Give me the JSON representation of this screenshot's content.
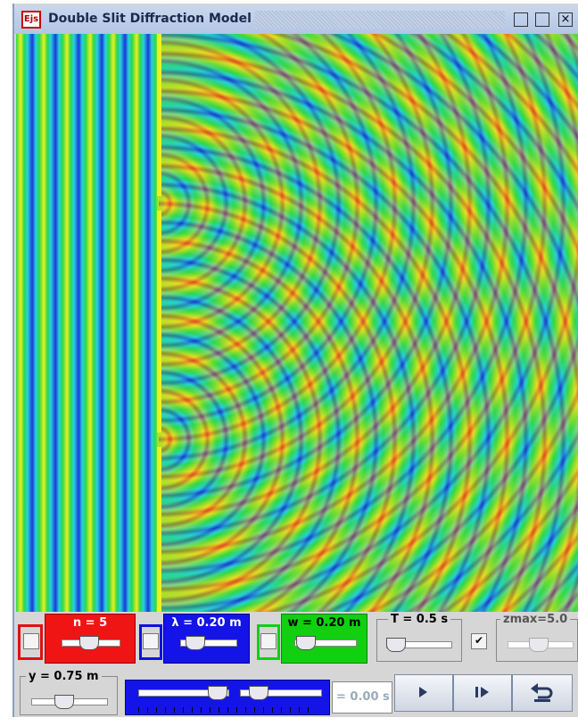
{
  "window": {
    "icon": "Ejs",
    "title": "Double Slit Diffraction Model"
  },
  "controls": {
    "n": "n = 5",
    "wavelength": "λ = 0.20 m",
    "width": "w = 0.20 m",
    "period": "T = 0.5 s",
    "zmax": "zmax=5.0",
    "y": "y = 0.75 m",
    "time": "= 0.00 s"
  }
}
